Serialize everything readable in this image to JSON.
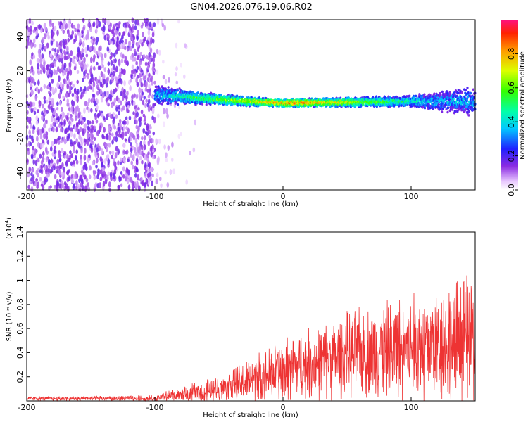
{
  "title": "GN04.2026.076.19.06.R02",
  "chart_data": [
    {
      "type": "heatmap",
      "xlabel": "Height of straight line (km)",
      "ylabel": "Frequency (Hz)",
      "xlim": [
        -200,
        150
      ],
      "ylim": [
        -50,
        50
      ],
      "xticks": [
        -200,
        -100,
        0,
        100
      ],
      "yticks": [
        -40,
        -20,
        0,
        20,
        40
      ],
      "colorbar": {
        "label": "Normalized spectral amplitude",
        "range": [
          0,
          1
        ],
        "ticks": [
          0.0,
          0.2,
          0.4,
          0.6,
          0.8
        ]
      },
      "description_points": [
        {
          "x": -200,
          "noise_band": [
            -50,
            50
          ]
        },
        {
          "x": -100,
          "ridge_center_hz": 6,
          "ridge_halfwidth_hz": 5
        },
        {
          "x": -50,
          "ridge_center_hz": 3,
          "ridge_halfwidth_hz": 3
        },
        {
          "x": 0,
          "ridge_center_hz": 1,
          "ridge_halfwidth_hz": 2
        },
        {
          "x": 100,
          "ridge_center_hz": 2,
          "ridge_halfwidth_hz": 3
        },
        {
          "x": 150,
          "ridge_center_hz": 2,
          "ridge_halfwidth_hz": 8
        }
      ]
    },
    {
      "type": "line",
      "xlabel": "Height of straight line (km)",
      "ylabel": "SNR (10 * v/v)",
      "scale_label": "(x10",
      "scale_exp": "4",
      "scale_close": ")",
      "xlim": [
        -200,
        150
      ],
      "ylim": [
        0,
        1.4
      ],
      "xticks": [
        -200,
        -100,
        0,
        100
      ],
      "yticks": [
        0.2,
        0.4,
        0.6,
        0.8,
        1.0,
        1.2,
        1.4
      ],
      "color": "#ee3333",
      "envelope": [
        {
          "x": -200,
          "base": 0.02,
          "amp": 0.02
        },
        {
          "x": -100,
          "base": 0.02,
          "amp": 0.03
        },
        {
          "x": -80,
          "base": 0.05,
          "amp": 0.08
        },
        {
          "x": -50,
          "base": 0.1,
          "amp": 0.12
        },
        {
          "x": -30,
          "base": 0.15,
          "amp": 0.2
        },
        {
          "x": 0,
          "base": 0.25,
          "amp": 0.3
        },
        {
          "x": 50,
          "base": 0.38,
          "amp": 0.4
        },
        {
          "x": 100,
          "base": 0.45,
          "amp": 0.5
        },
        {
          "x": 150,
          "base": 0.5,
          "amp": 0.65
        }
      ]
    }
  ]
}
